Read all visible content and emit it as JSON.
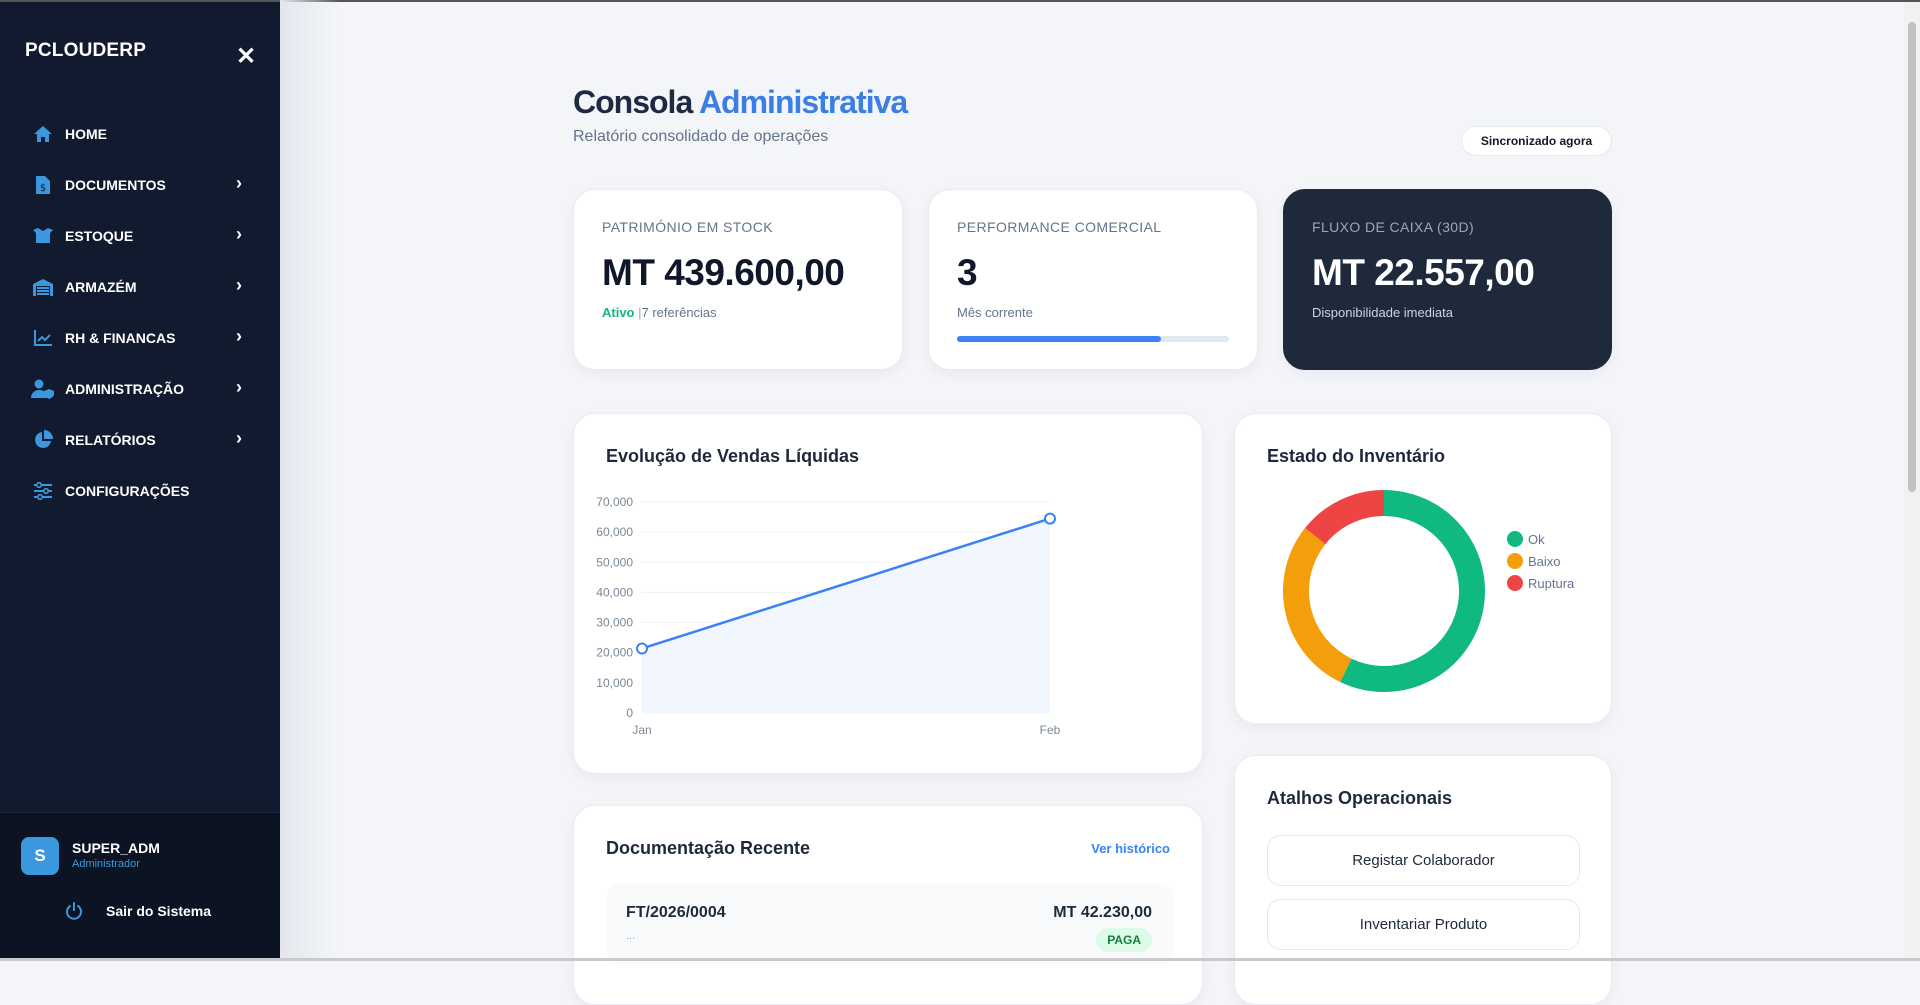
{
  "sidebar": {
    "brand": "PCLOUDERP",
    "items": [
      {
        "label": "HOME",
        "icon": "home-icon"
      },
      {
        "label": "DOCUMENTOS",
        "icon": "invoice-icon"
      },
      {
        "label": "ESTOQUE",
        "icon": "box-icon"
      },
      {
        "label": "ARMAZÉM",
        "icon": "warehouse-icon"
      },
      {
        "label": "RH & FINANCAS",
        "icon": "chart-line-icon"
      },
      {
        "label": "ADMINISTRAÇÃO",
        "icon": "user-shield-icon"
      },
      {
        "label": "RELATÓRIOS",
        "icon": "pie-chart-icon"
      },
      {
        "label": "CONFIGURAÇÕES",
        "icon": "sliders-icon"
      }
    ],
    "user": {
      "initial": "S",
      "name": "SUPER_ADM",
      "role": "Administrador"
    },
    "logout": "Sair do Sistema"
  },
  "header": {
    "title_a": "Consola",
    "title_b": "Administrativa",
    "subtitle": "Relatório consolidado de operações",
    "sync": "Sincronizado agora"
  },
  "kpis": [
    {
      "label": "PATRIMÓNIO EM STOCK",
      "value": "MT 439.600,00",
      "status": "Ativo",
      "sub": "7 referências"
    },
    {
      "label": "PERFORMANCE COMERCIAL",
      "value": "3",
      "sub": "Mês corrente",
      "progress": 0.75
    },
    {
      "label": "FLUXO DE CAIXA (30D)",
      "value": "MT 22.557,00",
      "sub": "Disponibilidade imediata"
    }
  ],
  "chart_data": [
    {
      "type": "line",
      "title": "Evolução de Vendas Líquidas",
      "categories": [
        "Jan",
        "Feb"
      ],
      "values": [
        21400,
        64500
      ],
      "ylim": [
        0,
        70000
      ],
      "yticks": [
        "0",
        "10,000",
        "20,000",
        "30,000",
        "40,000",
        "50,000",
        "60,000",
        "70,000"
      ],
      "color": "#3b82f6"
    },
    {
      "type": "pie",
      "title": "Estado do Inventário",
      "labels": [
        "Ok",
        "Baixo",
        "Ruptura"
      ],
      "values": [
        4,
        2,
        1
      ],
      "colors": [
        "#10b981",
        "#f59e0b",
        "#ef4444"
      ],
      "legend": "right"
    }
  ],
  "docs": {
    "title": "Documentação Recente",
    "link": "Ver histórico",
    "rows": [
      {
        "id": "FT/2026/0004",
        "desc": "...",
        "amount": "MT 42.230,00",
        "status": "PAGA"
      }
    ]
  },
  "shortcuts": {
    "title": "Atalhos Operacionais",
    "buttons": [
      "Registar Colaborador",
      "Inventariar Produto"
    ]
  }
}
